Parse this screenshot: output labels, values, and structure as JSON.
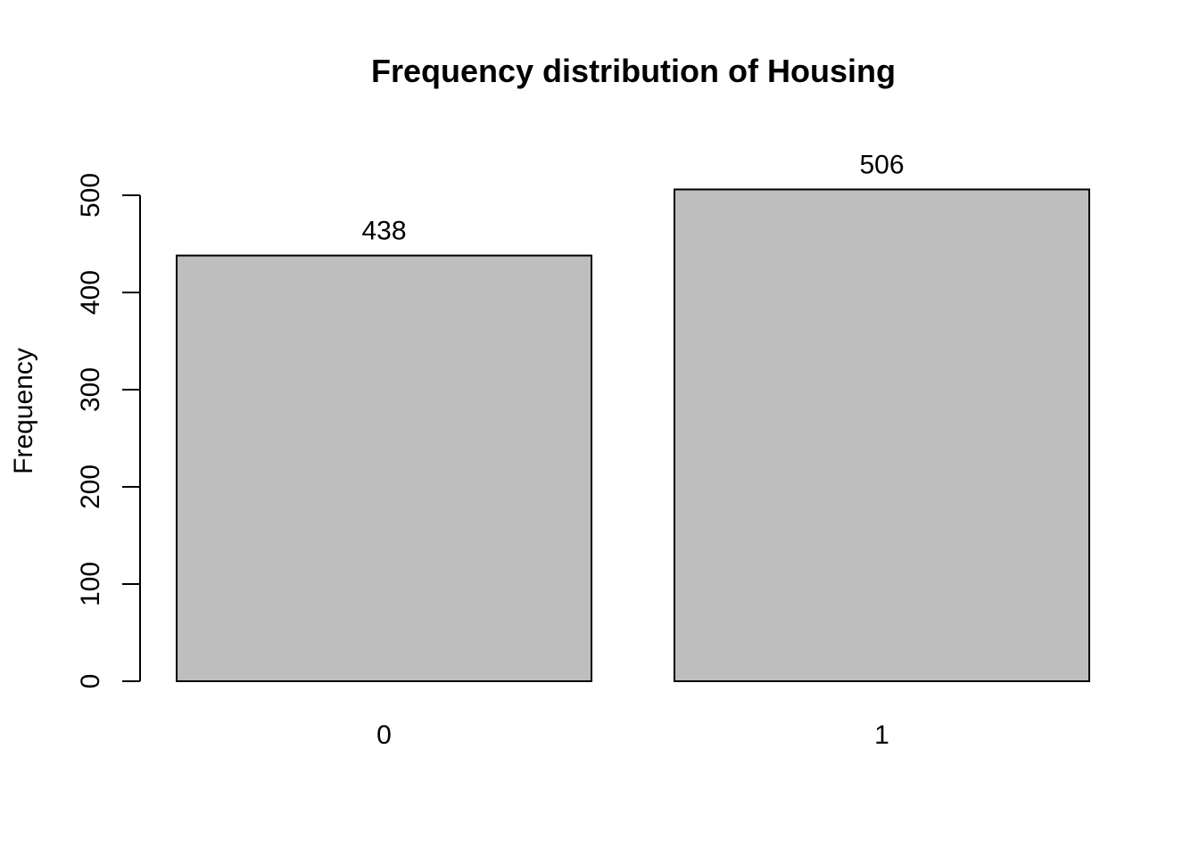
{
  "chart_data": {
    "type": "bar",
    "title": "Frequency distribution of Housing",
    "xlabel": "",
    "ylabel": "Frequency",
    "categories": [
      "0",
      "1"
    ],
    "values": [
      438,
      506
    ],
    "data_labels": [
      "438",
      "506"
    ],
    "ylim": [
      0,
      500
    ],
    "yticks": [
      0,
      100,
      200,
      300,
      400,
      500
    ],
    "ytick_labels": [
      "0",
      "100",
      "200",
      "300",
      "400",
      "500"
    ],
    "grid": false,
    "legend": "none",
    "bar_color": "#bebebe",
    "bar_border_color": "#000000"
  }
}
